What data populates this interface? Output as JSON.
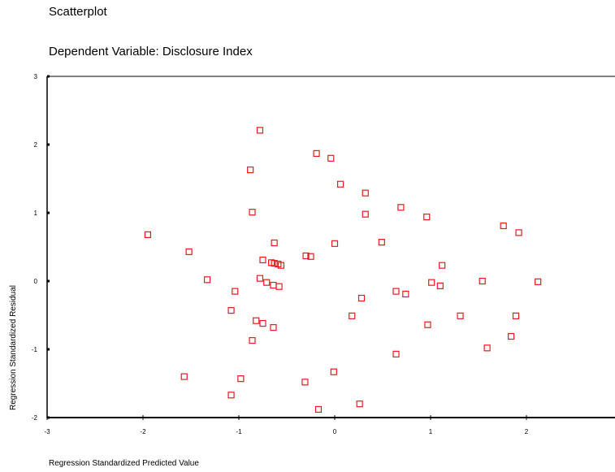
{
  "chart_data": {
    "type": "scatter",
    "title": "Scatterplot",
    "subtitle": "Dependent Variable: Disclosure Index",
    "x_label": "Regression Standardized Predicted Value",
    "y_label": "Regression Standardized Residual",
    "color": "#e8191f",
    "xlim": [
      -3,
      3
    ],
    "ylim": [
      -2,
      3
    ],
    "xticks": [
      -3,
      -2,
      -1,
      0,
      1,
      2
    ],
    "yticks": [
      -2,
      -1,
      0,
      1,
      2,
      3
    ],
    "x": [
      -1.95,
      -1.52,
      -1.33,
      -1.04,
      -1.08,
      -1.57,
      -0.98,
      -1.08,
      -0.78,
      -0.88,
      -0.86,
      -0.63,
      -0.75,
      -0.66,
      -0.63,
      -0.59,
      -0.56,
      -0.78,
      -0.71,
      -0.64,
      -0.58,
      -0.82,
      -0.75,
      -0.64,
      -0.86,
      -0.19,
      -0.04,
      0.06,
      0.32,
      0.32,
      0.0,
      -0.3,
      -0.25,
      0.28,
      0.18,
      -0.31,
      -0.01,
      -0.17,
      0.26,
      0.69,
      0.96,
      0.49,
      1.12,
      1.01,
      1.1,
      0.64,
      0.74,
      0.64,
      0.97,
      1.31,
      1.54,
      1.76,
      1.92,
      2.12,
      1.89,
      1.84,
      1.59
    ],
    "values": [
      0.68,
      0.43,
      0.02,
      -0.15,
      -0.43,
      -1.4,
      -1.43,
      -1.67,
      2.21,
      1.63,
      1.01,
      0.56,
      0.31,
      0.27,
      0.26,
      0.25,
      0.23,
      0.04,
      -0.02,
      -0.06,
      -0.08,
      -0.58,
      -0.62,
      -0.68,
      -0.87,
      1.87,
      1.8,
      1.42,
      1.29,
      0.98,
      0.55,
      0.37,
      0.36,
      -0.25,
      -0.51,
      -1.48,
      -1.33,
      -1.88,
      -1.8,
      1.08,
      0.94,
      0.57,
      0.23,
      -0.02,
      -0.07,
      -0.15,
      -0.19,
      -1.07,
      -0.64,
      -0.51,
      0.0,
      0.81,
      0.71,
      -0.01,
      -0.51,
      -0.81,
      -0.98
    ]
  }
}
